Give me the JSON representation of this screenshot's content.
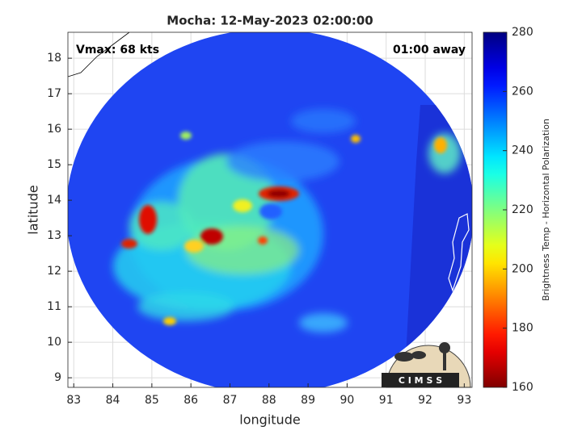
{
  "chart_data": {
    "type": "map",
    "title": "Mocha: 12-May-2023 02:00:00",
    "annotations": [
      "Vmax: 68 kts",
      "01:00 away"
    ],
    "xlabel": "longitude",
    "ylabel": "latitude",
    "xlim": [
      82.85,
      93.2
    ],
    "xticks": [
      83,
      84,
      85,
      86,
      87,
      88,
      89,
      90,
      91,
      92,
      93
    ],
    "ylim": [
      8.73,
      18.73
    ],
    "yticks": [
      9,
      10,
      11,
      12,
      13,
      14,
      15,
      16,
      17,
      18
    ],
    "grid": true,
    "colorbar": {
      "label": "Brightness Temp - Horizontal Polarization",
      "lim": [
        160,
        280
      ],
      "ticks": [
        160,
        180,
        200,
        220,
        240,
        260,
        280
      ],
      "colormap": "jet",
      "reversed": true
    },
    "logo_text": "C I M S S"
  }
}
